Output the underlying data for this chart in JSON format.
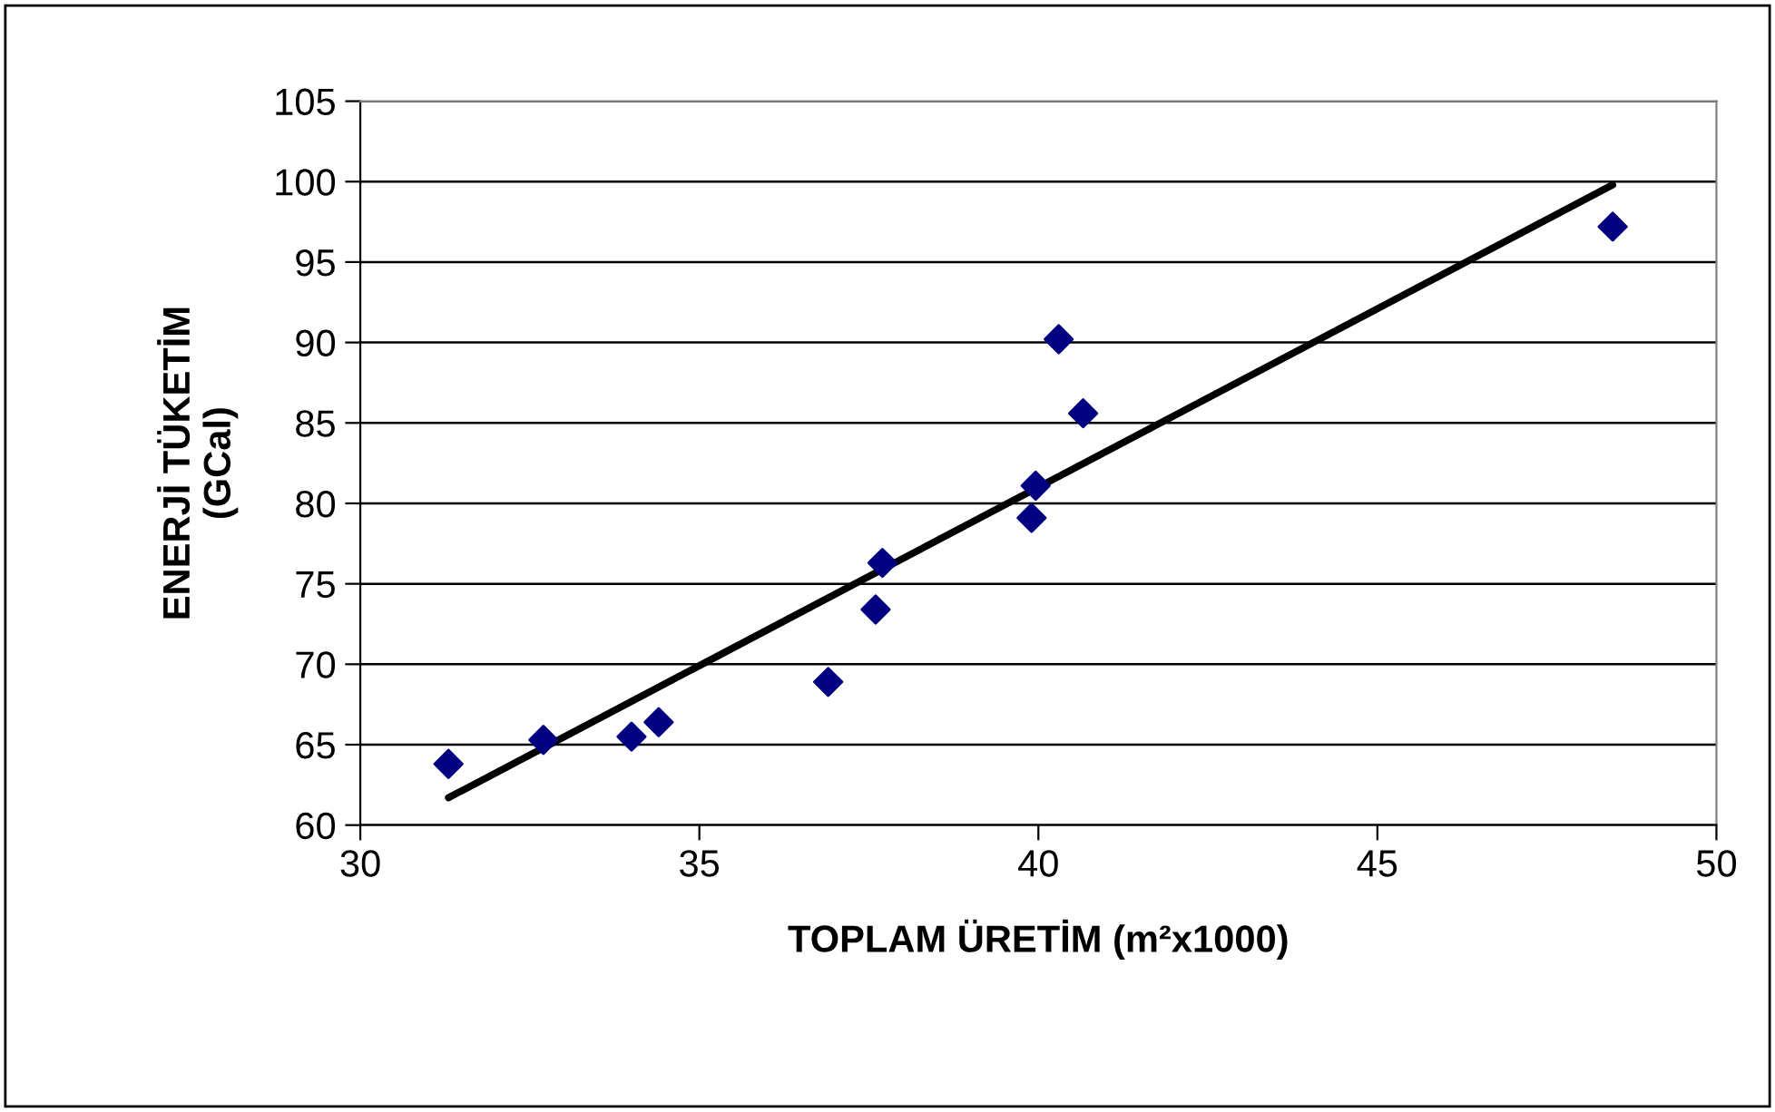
{
  "chart_data": {
    "type": "scatter",
    "xlabel": "TOPLAM ÜRETİM (m²x1000)",
    "ylabel": "ENERJİ TÜKETİM\n(GCal)",
    "series": [
      {
        "color": "#000080",
        "marker": "diamond",
        "x": [
          31.3,
          32.7,
          34.0,
          34.4,
          36.9,
          37.6,
          37.7,
          39.9,
          39.96,
          40.3,
          40.66,
          48.47
        ],
        "values": [
          63.8,
          65.3,
          65.5,
          66.4,
          68.9,
          73.4,
          76.3,
          79.1,
          81.1,
          90.2,
          85.6,
          97.2
        ]
      },
      {
        "type": "line",
        "color": "#000000",
        "marker": "none",
        "line_style": "solid",
        "x": [
          31.3,
          48.47
        ],
        "values": [
          61.7,
          99.8
        ]
      }
    ],
    "xlim": [
      30,
      50
    ],
    "xticks": [
      30,
      35,
      40,
      45,
      50
    ],
    "ylim": [
      60,
      105
    ],
    "yticks": [
      60,
      65,
      70,
      75,
      80,
      85,
      90,
      95,
      100,
      105
    ],
    "grid": "y",
    "legend": false
  }
}
